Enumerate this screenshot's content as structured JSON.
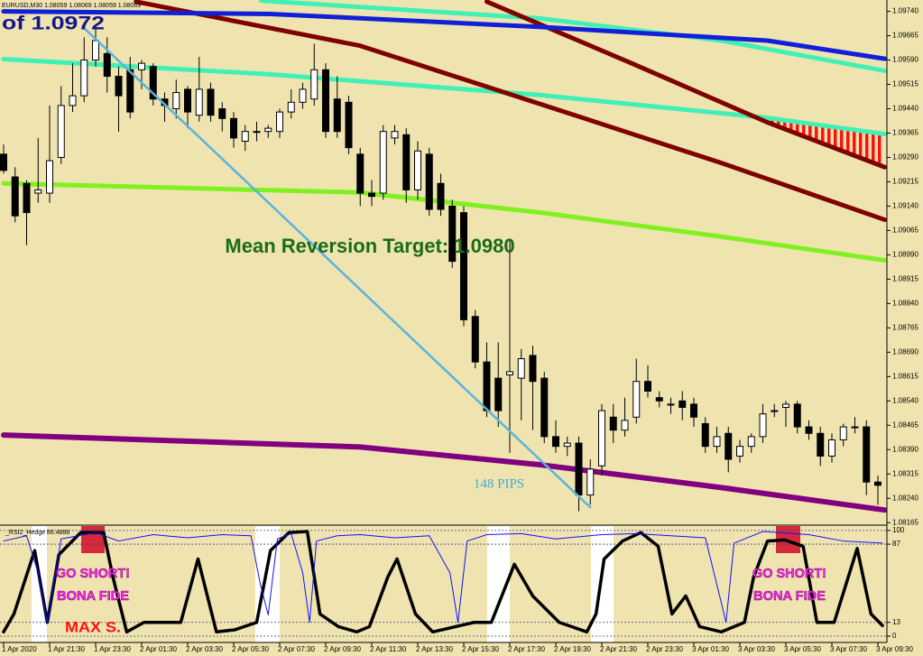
{
  "chart_data": [
    {
      "type": "candlestick",
      "title": "EURUSD,M30 1.08059 1.08069 1.08059 1.08069",
      "note_top": "of 1.0972",
      "target_label": "Mean Reversion Target: 1.0980",
      "pips_label": "148 PIPS",
      "categories": [
        "1 Apr 2020",
        null,
        null,
        null,
        "1 Apr 21:30",
        null,
        null,
        null,
        "1 Apr 23:30",
        null,
        null,
        null,
        "2 Apr 01:30",
        null,
        null,
        null,
        "2 Apr 03:30",
        null,
        null,
        null,
        "2 Apr 05:30",
        null,
        null,
        null,
        "2 Apr 07:30",
        null,
        null,
        null,
        "2 Apr 09:30",
        null,
        null,
        null,
        "2 Apr 11:30",
        null,
        null,
        null,
        "2 Apr 13:30",
        null,
        null,
        null,
        "2 Apr 15:30",
        null,
        null,
        null,
        "2 Apr 17:30",
        null,
        null,
        null,
        "2 Apr 19:30",
        null,
        null,
        null,
        "2 Apr 21:30",
        null,
        null,
        null,
        "2 Apr 23:30",
        null,
        null,
        null,
        "3 Apr 01:30",
        null,
        null,
        null,
        "3 Apr 03:30",
        null,
        null,
        null,
        "3 Apr 05:30",
        null,
        null,
        null,
        "3 Apr 07:30",
        null,
        null,
        null,
        "3 Apr 09:30"
      ],
      "ohlc": [
        [
          1.093,
          1.0933,
          1.0924,
          1.0925
        ],
        [
          1.0923,
          1.0926,
          1.0909,
          1.0911
        ],
        [
          1.0921,
          1.0922,
          1.0902,
          1.0912
        ],
        [
          1.0918,
          1.0935,
          1.0915,
          1.0919
        ],
        [
          1.0918,
          1.0945,
          1.0915,
          1.0928
        ],
        [
          1.0929,
          1.0951,
          1.0927,
          1.0945
        ],
        [
          1.0945,
          1.0958,
          1.0943,
          1.0948
        ],
        [
          1.0948,
          1.0966,
          1.0946,
          1.0959
        ],
        [
          1.0959,
          1.0969,
          1.0957,
          1.0965
        ],
        [
          1.0961,
          1.0966,
          1.0949,
          1.0954
        ],
        [
          1.0954,
          1.0957,
          1.0937,
          1.0948
        ],
        [
          1.0956,
          1.096,
          1.0941,
          1.0943
        ],
        [
          1.0956,
          1.0959,
          1.095,
          1.0958
        ],
        [
          1.0957,
          1.0958,
          1.0945,
          1.0947
        ],
        [
          1.0947,
          1.0949,
          1.094,
          1.0945
        ],
        [
          1.0944,
          1.0953,
          1.0941,
          1.0949
        ],
        [
          1.095,
          1.0951,
          1.0938,
          1.0943
        ],
        [
          1.0942,
          1.096,
          1.094,
          1.095
        ],
        [
          1.095,
          1.0952,
          1.094,
          1.0942
        ],
        [
          1.0944,
          1.0946,
          1.0937,
          1.0941
        ],
        [
          1.0941,
          1.0943,
          1.0932,
          1.0935
        ],
        [
          1.0934,
          1.0939,
          1.0931,
          1.0937
        ],
        [
          1.0937,
          1.094,
          1.0934,
          1.0937
        ],
        [
          1.0937,
          1.0939,
          1.0935,
          1.0938
        ],
        [
          1.0937,
          1.0944,
          1.0935,
          1.0943
        ],
        [
          1.0943,
          1.095,
          1.0941,
          1.0946
        ],
        [
          1.0946,
          1.0952,
          1.0944,
          1.095
        ],
        [
          1.0947,
          1.0964,
          1.0945,
          1.0956
        ],
        [
          1.0956,
          1.0958,
          1.0935,
          1.0937
        ],
        [
          1.0947,
          1.0954,
          1.0935,
          1.0937
        ],
        [
          1.0946,
          1.0948,
          1.093,
          1.0932
        ],
        [
          1.093,
          1.0932,
          1.0914,
          1.0918
        ],
        [
          1.0918,
          1.0922,
          1.0914,
          1.0917
        ],
        [
          1.0918,
          1.0939,
          1.0916,
          1.0937
        ],
        [
          1.0935,
          1.0939,
          1.0933,
          1.0937
        ],
        [
          1.0936,
          1.0938,
          1.0915,
          1.0919
        ],
        [
          1.0919,
          1.0934,
          1.0916,
          1.0931
        ],
        [
          1.093,
          1.0932,
          1.0911,
          1.0913
        ],
        [
          1.0921,
          1.0924,
          1.0911,
          1.0913
        ],
        [
          1.0914,
          1.0916,
          1.0895,
          1.0897
        ],
        [
          1.0912,
          1.0914,
          1.0877,
          1.0879
        ],
        [
          1.088,
          1.0882,
          1.0864,
          1.0866
        ],
        [
          1.0866,
          1.0872,
          1.0849,
          1.0851
        ],
        [
          1.0861,
          1.0872,
          1.0846,
          1.0851
        ],
        [
          1.0862,
          1.0904,
          1.0838,
          1.0863
        ],
        [
          1.0861,
          1.087,
          1.0848,
          1.0867
        ],
        [
          1.0868,
          1.0871,
          1.0845,
          1.086
        ],
        [
          1.0861,
          1.0863,
          1.0841,
          1.0843
        ],
        [
          1.0843,
          1.0848,
          1.0838,
          1.084
        ],
        [
          1.084,
          1.0843,
          1.0837,
          1.0841
        ],
        [
          1.0841,
          1.0843,
          1.082,
          1.0825
        ],
        [
          1.0825,
          1.0836,
          1.0822,
          1.0833
        ],
        [
          1.0834,
          1.0853,
          1.0831,
          1.0851
        ],
        [
          1.0849,
          1.0853,
          1.0841,
          1.0845
        ],
        [
          1.0845,
          1.0855,
          1.0843,
          1.0848
        ],
        [
          1.0849,
          1.0867,
          1.0847,
          1.086
        ],
        [
          1.086,
          1.0865,
          1.0855,
          1.0857
        ],
        [
          1.0855,
          1.0857,
          1.0852,
          1.0854
        ],
        [
          1.0853,
          1.0855,
          1.085,
          1.0853
        ],
        [
          1.0854,
          1.0857,
          1.0848,
          1.0852
        ],
        [
          1.0853,
          1.0855,
          1.0846,
          1.0849
        ],
        [
          1.0847,
          1.0849,
          1.0838,
          1.084
        ],
        [
          1.084,
          1.0846,
          1.0838,
          1.0843
        ],
        [
          1.0844,
          1.0846,
          1.0832,
          1.0836
        ],
        [
          1.0837,
          1.0842,
          1.0835,
          1.084
        ],
        [
          1.084,
          1.0844,
          1.0838,
          1.0843
        ],
        [
          1.0843,
          1.0853,
          1.0841,
          1.085
        ],
        [
          1.0851,
          1.0853,
          1.0849,
          1.0851
        ],
        [
          1.0852,
          1.0854,
          1.0846,
          1.0853
        ],
        [
          1.0853,
          1.0854,
          1.0844,
          1.0846
        ],
        [
          1.0846,
          1.0848,
          1.0842,
          1.0844
        ],
        [
          1.0844,
          1.0846,
          1.0834,
          1.0837
        ],
        [
          1.0837,
          1.0844,
          1.0835,
          1.0842
        ],
        [
          1.0842,
          1.0847,
          1.084,
          1.0846
        ],
        [
          1.0846,
          1.0849,
          1.0844,
          1.0846
        ],
        [
          1.0846,
          1.0848,
          1.0825,
          1.0829
        ],
        [
          1.0829,
          1.0831,
          1.0822,
          1.0828
        ]
      ],
      "series": [
        {
          "color": "#40f0b4",
          "x": [
            22.4,
            46.7,
            62.4,
            76.6
          ],
          "values": [
            1.09773,
            1.09718,
            1.0965,
            1.09557
          ]
        },
        {
          "color": "#40f0b4",
          "x": [
            0,
            23.2,
            46.7,
            66.4,
            76.6
          ],
          "values": [
            1.09593,
            1.09546,
            1.09482,
            1.09412,
            1.09362
          ]
        },
        {
          "color": "#800000",
          "x": [
            42,
            54.6,
            66.4,
            76.6
          ],
          "values": [
            1.0977,
            1.0958,
            1.09398,
            1.0926
          ]
        },
        {
          "color": "#800000",
          "x": [
            11.5,
            31,
            46.7,
            62.4,
            76.6
          ],
          "values": [
            1.0977,
            1.09634,
            1.09454,
            1.09273,
            1.09098
          ]
        },
        {
          "color": "#1020d8",
          "x": [
            0,
            23.2,
            46.7,
            66.4,
            76.6
          ],
          "values": [
            1.0974,
            1.09732,
            1.09692,
            1.0965,
            1.09594
          ]
        },
        {
          "color": "#80f020",
          "x": [
            0,
            31,
            46.7,
            62.4,
            76.6
          ],
          "values": [
            1.0921,
            1.09182,
            1.0912,
            1.09046,
            1.08973
          ]
        },
        {
          "color": "#800080",
          "x": [
            0,
            31,
            46.7,
            62.4,
            76.6
          ],
          "values": [
            1.08435,
            1.08398,
            1.08343,
            1.08273,
            1.08204
          ]
        }
      ],
      "bull_color": "#ffffff",
      "bear_color": "#000000",
      "ylim": [
        1.0816,
        1.09775
      ],
      "yticks": [
        {
          "value": 1.0974,
          "label": "1.09740"
        },
        1.09665,
        {
          "value": 1.0959,
          "label": "1.09590"
        },
        1.09515,
        {
          "value": 1.0944,
          "label": "1.09440"
        },
        1.09365,
        {
          "value": 1.0929,
          "label": "1.09290"
        },
        1.09215,
        {
          "value": 1.0914,
          "label": "1.09140"
        },
        1.09065,
        {
          "value": 1.0899,
          "label": "1.08990"
        },
        1.08915,
        {
          "value": 1.0884,
          "label": "1.08840"
        },
        1.08765,
        {
          "value": 1.0869,
          "label": "1.08690"
        },
        1.08615,
        {
          "value": 1.0854,
          "label": "1.08540"
        },
        1.08465,
        {
          "value": 1.0839,
          "label": "1.08390"
        },
        1.08315,
        {
          "value": 1.0824,
          "label": "1.08240"
        },
        1.08165
      ]
    },
    {
      "type": "line",
      "title": "_RSI2_Hedge 86.4888",
      "annotations": [
        "GO SHORT!",
        "BONA FIDE",
        "GO SHORT!",
        "BONA FIDE",
        "MAX S."
      ],
      "series": [
        {
          "color": "#000000",
          "x": [
            0,
            0.9,
            2.7,
            3.8,
            4.8,
            6.7,
            8.7,
            9.5,
            10.7,
            12.2,
            15.4,
            16.9,
            18.5,
            20.1,
            22,
            23.2,
            24.8,
            26.4,
            27.5,
            29.1,
            30.7,
            31.8,
            33.4,
            34.2,
            35.8,
            37.3,
            40.9,
            42.4,
            44.4,
            46,
            48.3,
            50.7,
            51.5,
            52.2,
            53.8,
            55.4,
            56.9,
            58.1,
            59.3,
            60.5,
            62.4,
            64.4,
            65.2,
            66.4,
            67.9,
            69.5,
            70.7,
            72.2,
            74.2,
            75.4,
            76.4
          ],
          "values": [
            4,
            21,
            81,
            13,
            77,
            98,
            98,
            56,
            4,
            13,
            13,
            73,
            4,
            6,
            13,
            81,
            98,
            99,
            21,
            9,
            4,
            9,
            56,
            73,
            21,
            4,
            13,
            13,
            68,
            38,
            13,
            4,
            21,
            73,
            90,
            98,
            85,
            21,
            38,
            9,
            4,
            13,
            56,
            90,
            91,
            85,
            13,
            13,
            83,
            21,
            10
          ]
        },
        {
          "color": "#1010ff",
          "x": [
            0,
            2,
            3,
            3.8,
            5,
            8,
            10,
            13,
            16,
            19,
            21.5,
            22.3,
            23,
            23.8,
            25,
            26,
            26.6,
            27.2,
            29,
            31,
            34,
            37,
            38.8,
            39.5,
            40.3,
            42,
            45,
            48,
            52,
            55,
            58,
            61,
            62.2,
            62.8,
            63.5,
            66,
            70,
            73,
            76.4
          ],
          "values": [
            90,
            95,
            60,
            13,
            92,
            98,
            90,
            96,
            93,
            96,
            95,
            50,
            20,
            92,
            97,
            60,
            13,
            90,
            95,
            96,
            93,
            95,
            60,
            13,
            90,
            96,
            97,
            92,
            96,
            97,
            95,
            93,
            40,
            13,
            88,
            99,
            96,
            90,
            88
          ]
        }
      ],
      "ylim": [
        -6,
        105
      ],
      "yticks": [
        0,
        13,
        87,
        100
      ],
      "grid": true
    }
  ]
}
